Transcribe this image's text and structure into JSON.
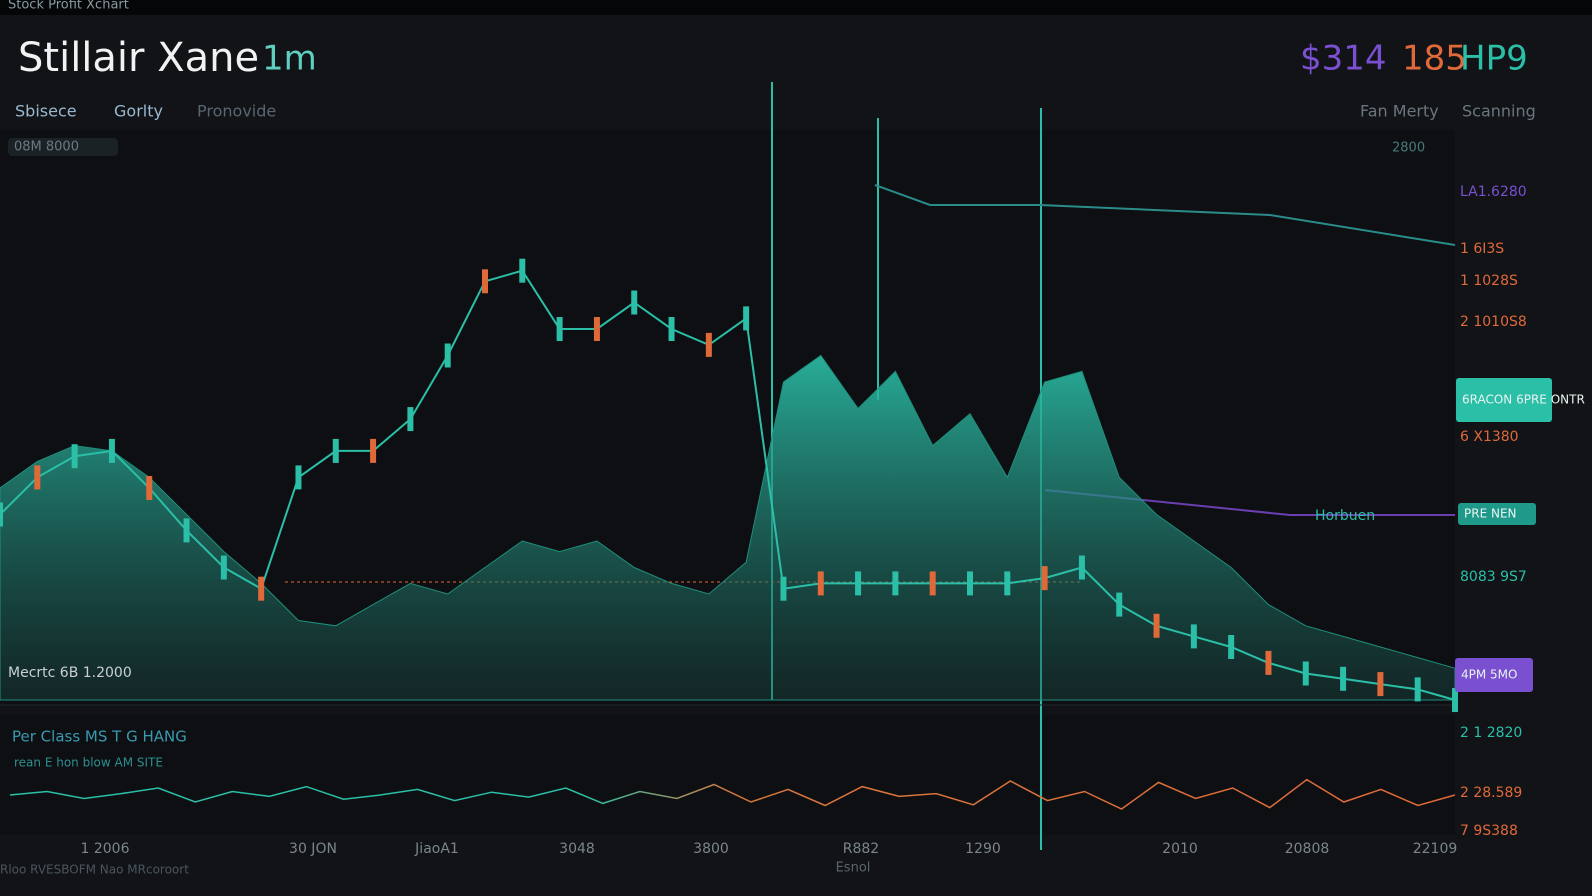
{
  "header": {
    "topbar": "Stock Profit Xchart",
    "title": "Stillair Xane",
    "interval": "1m",
    "price": [
      "$314",
      "185",
      "HP9"
    ]
  },
  "nav": [
    "Sbisece",
    "Gorlty",
    "Pronovide"
  ],
  "nav_right": [
    "Fan Merty",
    "Scanning"
  ],
  "chart_data": [
    {
      "type": "line",
      "badge_left": "08M 8000",
      "badge_right": "2800",
      "annotations": [
        "LA1.6280",
        "1 6I3S",
        "1 1028S",
        "2 1010S8",
        "6 X1380",
        "8083 9S7",
        "2 1 2820",
        "2 28.589",
        "7 9S388"
      ],
      "tags": [
        "6RACON 6PRE ONTR",
        "PRE NEN",
        "4PM 5MO",
        "Horbuen"
      ],
      "volume_label": "Mecrtc 6B 1.2000",
      "ylim": [
        0,
        100
      ],
      "series": [
        {
          "name": "Price",
          "color": "#2bbfa8",
          "values": [
            35,
            42,
            46,
            47,
            40,
            32,
            25,
            21,
            42,
            47,
            47,
            53,
            65,
            79,
            81,
            70,
            70,
            75,
            70,
            67,
            72,
            21,
            22,
            22,
            22,
            22,
            22,
            22,
            23,
            25,
            18,
            14,
            12,
            10,
            7,
            5,
            4,
            3,
            2,
            0
          ]
        },
        {
          "name": "Volume",
          "color": "#1f8f7c",
          "values": [
            40,
            45,
            48,
            47,
            42,
            35,
            28,
            22,
            15,
            14,
            18,
            22,
            20,
            25,
            30,
            28,
            30,
            25,
            22,
            20,
            26,
            60,
            65,
            55,
            62,
            48,
            54,
            42,
            60,
            62,
            42,
            35,
            30,
            25,
            18,
            14,
            12,
            10,
            8,
            6
          ]
        }
      ]
    },
    {
      "type": "line",
      "title": "Per Class MS T G HANG",
      "subtitle": "rean E hon blow AM SITE",
      "ylim": [
        0,
        100
      ],
      "x_labels": [
        "1 2006",
        "30 JON",
        "JiaoA1",
        "3048",
        "3800",
        "R882",
        "1290",
        "2010",
        "20808",
        "22109"
      ],
      "x_caption": "Esnol",
      "series": [
        {
          "name": "Oscillator",
          "color": "#2bbfa8",
          "values": [
            50,
            55,
            45,
            52,
            60,
            40,
            55,
            48,
            62,
            44,
            50,
            58,
            42,
            54,
            47,
            60,
            38,
            55,
            45,
            65,
            40,
            58,
            35,
            62,
            48,
            52,
            36,
            70,
            42,
            55,
            30,
            68,
            45,
            60,
            32,
            72,
            40,
            58,
            35,
            50
          ]
        }
      ]
    }
  ],
  "footer": "Rloo RVESBOFM Nao MRcoroort"
}
